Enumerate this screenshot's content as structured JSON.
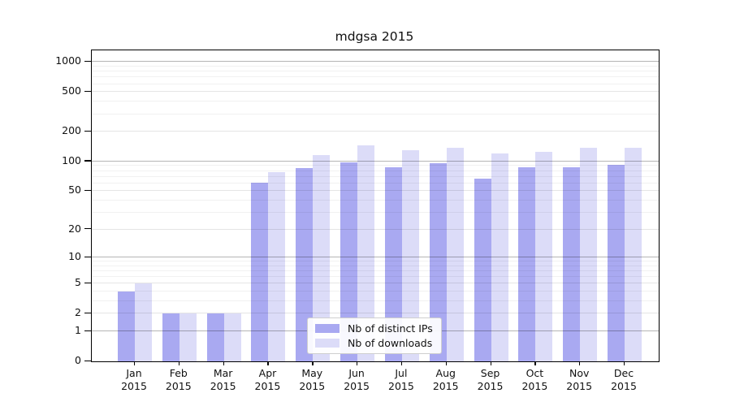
{
  "title": "mdgsa 2015",
  "chart_data": {
    "type": "bar",
    "title": "mdgsa 2015",
    "categories": [
      "Jan",
      "Feb",
      "Mar",
      "Apr",
      "May",
      "Jun",
      "Jul",
      "Aug",
      "Sep",
      "Oct",
      "Nov",
      "Dec"
    ],
    "x_year_label": "2015",
    "series": [
      {
        "name": "Nb of distinct IPs",
        "color": "#a9a9f1",
        "values": [
          4,
          2,
          2,
          61,
          86,
          98,
          87,
          96,
          67,
          87,
          87,
          92
        ]
      },
      {
        "name": "Nb of downloads",
        "color": "#dcdcf8",
        "values": [
          5,
          2,
          2,
          78,
          115,
          145,
          131,
          137,
          121,
          126,
          137,
          137
        ]
      }
    ],
    "y_ticks": [
      0,
      1,
      2,
      5,
      10,
      20,
      50,
      100,
      200,
      500,
      1000
    ],
    "y_minor_ticks": [
      3,
      4,
      6,
      7,
      8,
      9,
      30,
      40,
      60,
      70,
      80,
      90,
      300,
      400,
      600,
      700,
      800,
      900
    ],
    "y_scale": "log10(1+v)",
    "ylim": [
      0,
      1310
    ],
    "xlabel": "",
    "ylabel": "",
    "grid": true,
    "legend_position": "lower-center"
  },
  "colors": {
    "distinct_ips": "#a9a9f1",
    "downloads": "#dcdcf8",
    "grid_major": "#b5b5b5",
    "grid_minor": "#ededed",
    "axis": "#000000",
    "background": "#ffffff"
  }
}
